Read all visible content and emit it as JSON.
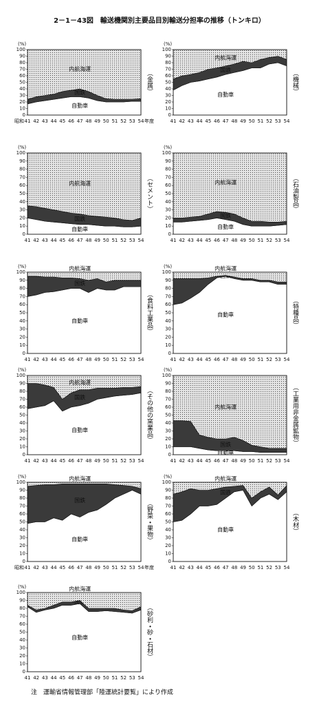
{
  "title": "2－1－43図　輸送機関別主要品目別輸送分担率の推移（トンキロ）",
  "note": "注　運輸省情報管理部「陸運統計要覧」により作成",
  "chart_data": [
    {
      "type": "stacked-area",
      "side_label": "（金属）",
      "y_unit": "(%)",
      "x_label_prefix": "昭和",
      "x_label_suffix": "年度",
      "categories": [
        "41",
        "42",
        "43",
        "44",
        "45",
        "46",
        "47",
        "48",
        "49",
        "50",
        "51",
        "52",
        "53",
        "54"
      ],
      "ylim": [
        0,
        100
      ],
      "yticks": [
        0,
        10,
        20,
        30,
        40,
        50,
        60,
        70,
        80,
        90,
        100
      ],
      "series": [
        {
          "name": "自動車",
          "color": "#ffffff",
          "values": [
            17,
            20,
            22,
            24,
            26,
            28,
            28,
            26,
            22,
            20,
            20,
            20,
            21,
            21
          ]
        },
        {
          "name": "国鉄",
          "color": "#3a3a3a",
          "values": [
            7,
            8,
            8,
            8,
            10,
            10,
            12,
            10,
            8,
            5,
            4,
            4,
            3,
            4
          ]
        },
        {
          "name": "内航海運",
          "color": "#e4e4e4",
          "pattern": "dots",
          "values": [
            76,
            72,
            70,
            68,
            64,
            62,
            60,
            64,
            70,
            75,
            76,
            76,
            76,
            75
          ]
        }
      ]
    },
    {
      "type": "stacked-area",
      "side_label": "（機械）",
      "y_unit": "(%)",
      "categories": [
        "41",
        "42",
        "43",
        "44",
        "45",
        "46",
        "47",
        "48",
        "49",
        "50",
        "51",
        "52",
        "53",
        "54"
      ],
      "ylim": [
        0,
        100
      ],
      "yticks": [
        0,
        10,
        20,
        30,
        40,
        50,
        60,
        70,
        80,
        90,
        100
      ],
      "series": [
        {
          "name": "自動車",
          "color": "#ffffff",
          "values": [
            38,
            45,
            50,
            52,
            55,
            58,
            62,
            65,
            68,
            72,
            72,
            78,
            80,
            75
          ]
        },
        {
          "name": "国鉄",
          "color": "#3a3a3a",
          "values": [
            17,
            15,
            12,
            13,
            15,
            14,
            13,
            13,
            14,
            8,
            13,
            10,
            10,
            10
          ]
        },
        {
          "name": "内航海運",
          "color": "#e4e4e4",
          "pattern": "dots",
          "values": [
            45,
            40,
            38,
            35,
            30,
            28,
            25,
            22,
            18,
            20,
            15,
            12,
            10,
            15
          ]
        }
      ]
    },
    {
      "type": "stacked-area",
      "side_label": "（セメント）",
      "y_unit": "(%)",
      "categories": [
        "41",
        "42",
        "43",
        "44",
        "45",
        "46",
        "47",
        "48",
        "49",
        "50",
        "51",
        "52",
        "53",
        "54"
      ],
      "ylim": [
        0,
        100
      ],
      "yticks": [
        0,
        10,
        20,
        30,
        40,
        50,
        60,
        70,
        80,
        90,
        100
      ],
      "series": [
        {
          "name": "自動車",
          "color": "#ffffff",
          "values": [
            20,
            18,
            16,
            15,
            14,
            13,
            12,
            12,
            11,
            10,
            10,
            9,
            9,
            10
          ]
        },
        {
          "name": "国鉄",
          "color": "#3a3a3a",
          "values": [
            15,
            16,
            16,
            15,
            14,
            13,
            13,
            11,
            11,
            11,
            10,
            9,
            8,
            10
          ]
        },
        {
          "name": "内航海運",
          "color": "#e4e4e4",
          "pattern": "dots",
          "values": [
            65,
            66,
            68,
            70,
            72,
            74,
            75,
            77,
            78,
            79,
            80,
            82,
            83,
            80
          ]
        }
      ]
    },
    {
      "type": "stacked-area",
      "side_label": "（石油製品）",
      "y_unit": "(%)",
      "categories": [
        "41",
        "42",
        "43",
        "44",
        "45",
        "46",
        "47",
        "48",
        "49",
        "50",
        "51",
        "52",
        "53",
        "54"
      ],
      "ylim": [
        0,
        100
      ],
      "yticks": [
        0,
        10,
        20,
        30,
        40,
        50,
        60,
        70,
        80,
        90,
        100
      ],
      "series": [
        {
          "name": "自動車",
          "color": "#ffffff",
          "values": [
            15,
            15,
            16,
            17,
            18,
            20,
            18,
            16,
            12,
            10,
            10,
            10,
            11,
            12
          ]
        },
        {
          "name": "国鉄",
          "color": "#3a3a3a",
          "values": [
            5,
            5,
            5,
            5,
            7,
            8,
            9,
            9,
            8,
            6,
            6,
            5,
            4,
            4
          ]
        },
        {
          "name": "内航海運",
          "color": "#e4e4e4",
          "pattern": "dots",
          "values": [
            80,
            80,
            79,
            78,
            75,
            72,
            73,
            75,
            80,
            84,
            84,
            85,
            85,
            84
          ]
        }
      ]
    },
    {
      "type": "stacked-area",
      "side_label": "（食料工業品）",
      "y_unit": "(%)",
      "categories": [
        "41",
        "42",
        "43",
        "44",
        "45",
        "46",
        "47",
        "48",
        "49",
        "50",
        "51",
        "52",
        "53",
        "54"
      ],
      "ylim": [
        0,
        100
      ],
      "yticks": [
        0,
        10,
        20,
        30,
        40,
        50,
        60,
        70,
        80,
        90,
        100
      ],
      "series": [
        {
          "name": "自動車",
          "color": "#ffffff",
          "values": [
            70,
            72,
            75,
            76,
            78,
            80,
            80,
            75,
            80,
            78,
            78,
            82,
            82,
            82
          ]
        },
        {
          "name": "国鉄",
          "color": "#3a3a3a",
          "values": [
            25,
            23,
            19,
            18,
            15,
            13,
            12,
            15,
            12,
            10,
            12,
            8,
            8,
            8
          ]
        },
        {
          "name": "内航海運",
          "color": "#e4e4e4",
          "pattern": "dots",
          "values": [
            5,
            5,
            6,
            6,
            7,
            7,
            8,
            10,
            8,
            12,
            10,
            10,
            10,
            10
          ]
        }
      ]
    },
    {
      "type": "stacked-area",
      "side_label": "（特種品）",
      "y_unit": "(%)",
      "categories": [
        "41",
        "42",
        "43",
        "44",
        "45",
        "46",
        "47",
        "48",
        "49",
        "50",
        "51",
        "52",
        "53",
        "54"
      ],
      "ylim": [
        0,
        100
      ],
      "yticks": [
        0,
        10,
        20,
        30,
        40,
        50,
        60,
        70,
        80,
        90,
        100
      ],
      "series": [
        {
          "name": "自動車",
          "color": "#ffffff",
          "values": [
            60,
            62,
            68,
            75,
            85,
            93,
            95,
            92,
            90,
            90,
            88,
            88,
            85,
            85
          ]
        },
        {
          "name": "国鉄",
          "color": "#3a3a3a",
          "values": [
            32,
            30,
            24,
            17,
            8,
            2,
            1,
            2,
            2,
            2,
            2,
            2,
            3,
            3
          ]
        },
        {
          "name": "内航海運",
          "color": "#e4e4e4",
          "pattern": "dots",
          "values": [
            8,
            8,
            8,
            8,
            7,
            5,
            4,
            6,
            8,
            8,
            10,
            10,
            12,
            12
          ]
        }
      ]
    },
    {
      "type": "stacked-area",
      "side_label": "（その他の窯業品）",
      "y_unit": "(%)",
      "categories": [
        "41",
        "42",
        "43",
        "44",
        "45",
        "46",
        "47",
        "48",
        "49",
        "50",
        "51",
        "52",
        "53",
        "54"
      ],
      "ylim": [
        0,
        100
      ],
      "yticks": [
        0,
        10,
        20,
        30,
        40,
        50,
        60,
        70,
        80,
        90,
        100
      ],
      "series": [
        {
          "name": "自動車",
          "color": "#ffffff",
          "values": [
            58,
            60,
            62,
            68,
            55,
            60,
            62,
            65,
            70,
            72,
            74,
            75,
            76,
            78
          ]
        },
        {
          "name": "国鉄",
          "color": "#3a3a3a",
          "values": [
            32,
            30,
            26,
            17,
            15,
            18,
            20,
            17,
            14,
            12,
            10,
            10,
            9,
            8
          ]
        },
        {
          "name": "内航海運",
          "color": "#e4e4e4",
          "pattern": "dots",
          "values": [
            10,
            10,
            12,
            15,
            30,
            22,
            18,
            18,
            16,
            16,
            16,
            15,
            15,
            14
          ]
        }
      ]
    },
    {
      "type": "stacked-area",
      "side_label": "（工業用非金属鉱物）",
      "y_unit": "(%)",
      "categories": [
        "41",
        "42",
        "43",
        "44",
        "45",
        "46",
        "47",
        "48",
        "49",
        "50",
        "51",
        "52",
        "53",
        "54"
      ],
      "ylim": [
        0,
        100
      ],
      "yticks": [
        0,
        10,
        20,
        30,
        40,
        50,
        60,
        70,
        80,
        90,
        100
      ],
      "series": [
        {
          "name": "自動車",
          "color": "#ffffff",
          "values": [
            10,
            10,
            10,
            8,
            6,
            5,
            5,
            5,
            4,
            4,
            3,
            3,
            3,
            3
          ]
        },
        {
          "name": "国鉄",
          "color": "#3a3a3a",
          "values": [
            33,
            33,
            32,
            17,
            16,
            15,
            15,
            17,
            14,
            8,
            7,
            5,
            5,
            5
          ]
        },
        {
          "name": "内航海運",
          "color": "#e4e4e4",
          "pattern": "dots",
          "values": [
            57,
            57,
            58,
            75,
            78,
            80,
            80,
            78,
            82,
            88,
            90,
            92,
            92,
            92
          ]
        }
      ]
    },
    {
      "type": "stacked-area",
      "side_label": "（野菜・果物）",
      "y_unit": "(%)",
      "x_label_prefix": "昭和",
      "x_label_suffix": "年度",
      "categories": [
        "41",
        "42",
        "43",
        "44",
        "45",
        "46",
        "47",
        "48",
        "49",
        "50",
        "51",
        "52",
        "53",
        "54"
      ],
      "ylim": [
        0,
        100
      ],
      "yticks": [
        0,
        10,
        20,
        30,
        40,
        50,
        60,
        70,
        80,
        90,
        100
      ],
      "series": [
        {
          "name": "自動車",
          "color": "#ffffff",
          "values": [
            48,
            50,
            50,
            55,
            52,
            60,
            56,
            62,
            65,
            72,
            80,
            85,
            90,
            85
          ]
        },
        {
          "name": "国鉄",
          "color": "#3a3a3a",
          "values": [
            47,
            46,
            47,
            42,
            46,
            38,
            42,
            36,
            33,
            26,
            17,
            11,
            5,
            7
          ]
        },
        {
          "name": "内航海運",
          "color": "#e4e4e4",
          "pattern": "dots",
          "values": [
            5,
            4,
            3,
            3,
            2,
            2,
            2,
            2,
            2,
            2,
            3,
            4,
            5,
            8
          ]
        }
      ]
    },
    {
      "type": "stacked-area",
      "side_label": "（木材）",
      "y_unit": "(%)",
      "categories": [
        "41",
        "42",
        "43",
        "44",
        "45",
        "46",
        "47",
        "48",
        "49",
        "50",
        "51",
        "52",
        "53",
        "54"
      ],
      "ylim": [
        0,
        100
      ],
      "yticks": [
        0,
        10,
        20,
        30,
        40,
        50,
        60,
        70,
        80,
        90,
        100
      ],
      "series": [
        {
          "name": "自動車",
          "color": "#ffffff",
          "values": [
            50,
            52,
            60,
            70,
            70,
            72,
            80,
            88,
            90,
            70,
            80,
            85,
            78,
            88
          ]
        },
        {
          "name": "国鉄",
          "color": "#3a3a3a",
          "values": [
            35,
            36,
            32,
            20,
            20,
            20,
            14,
            7,
            6,
            10,
            8,
            9,
            6,
            8
          ]
        },
        {
          "name": "内航海運",
          "color": "#e4e4e4",
          "pattern": "dots",
          "values": [
            15,
            12,
            8,
            10,
            10,
            8,
            6,
            5,
            4,
            20,
            12,
            6,
            16,
            4
          ]
        }
      ]
    },
    {
      "type": "stacked-area",
      "side_label": "（砂利・砂・石材）",
      "y_unit": "(%)",
      "categories": [
        "41",
        "42",
        "43",
        "44",
        "45",
        "46",
        "47",
        "48",
        "49",
        "50",
        "51",
        "52",
        "53",
        "54"
      ],
      "ylim": [
        0,
        100
      ],
      "yticks": [
        0,
        10,
        20,
        30,
        40,
        50,
        60,
        70,
        80,
        90,
        100
      ],
      "series": [
        {
          "name": "自動車",
          "color": "#ffffff",
          "values": [
            82,
            75,
            78,
            80,
            84,
            84,
            86,
            76,
            76,
            77,
            76,
            75,
            74,
            78
          ]
        },
        {
          "name": "国鉄",
          "color": "#3a3a3a",
          "values": [
            2,
            3,
            2,
            4,
            4,
            4,
            4,
            4,
            4,
            3,
            4,
            3,
            3,
            4
          ]
        },
        {
          "name": "内航海運",
          "color": "#e4e4e4",
          "pattern": "dots",
          "values": [
            16,
            22,
            20,
            16,
            12,
            12,
            10,
            20,
            20,
            20,
            20,
            22,
            23,
            18
          ]
        }
      ]
    }
  ]
}
